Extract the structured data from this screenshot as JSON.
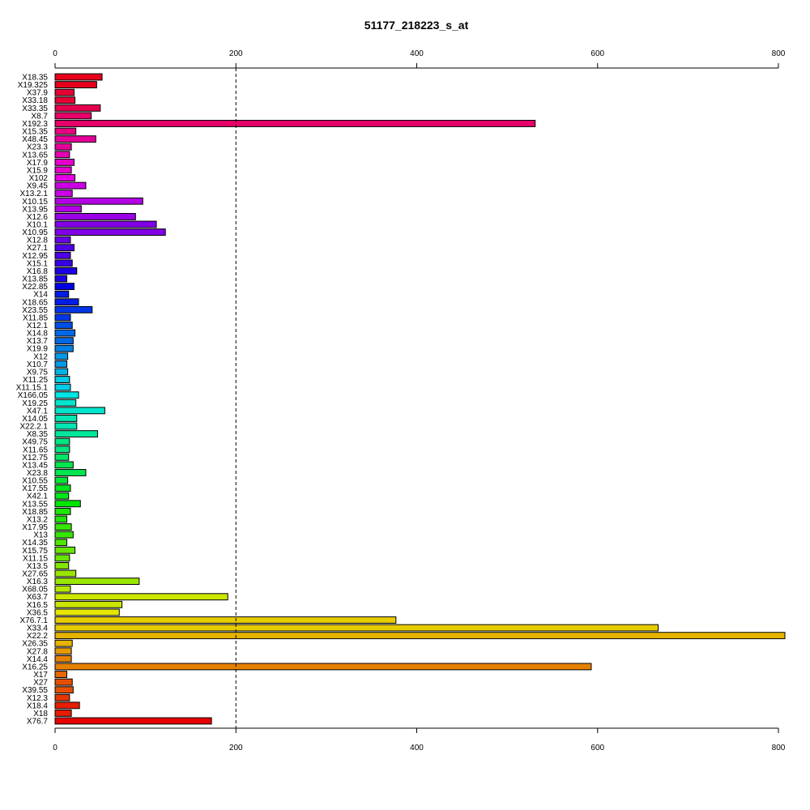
{
  "chart_data": {
    "type": "bar",
    "orientation": "horizontal",
    "title": "51177_218223_s_at",
    "xlabel": "",
    "ylabel": "",
    "xlim": [
      0,
      800
    ],
    "x_ticks": [
      0,
      200,
      400,
      600,
      800
    ],
    "reference_line": 200,
    "axes": "top-and-bottom",
    "grid": false,
    "legend": "none",
    "color_scheme": "rainbow",
    "categories": [
      "X18.35",
      "X19.325",
      "X37.9",
      "X33.18",
      "X33.35",
      "X8.7",
      "X192.3",
      "X15.35",
      "X48.45",
      "X23.3",
      "X13.65",
      "X17.9",
      "X15.9",
      "X102",
      "X9.45",
      "X13.2.1",
      "X10.15",
      "X13.95",
      "X12.6",
      "X10.1",
      "X10.95",
      "X12.8",
      "X27.1",
      "X12.95",
      "X15.1",
      "X16.8",
      "X13.85",
      "X22.85",
      "X14",
      "X18.65",
      "X23.55",
      "X11.85",
      "X12.1",
      "X14.8",
      "X13.7",
      "X19.9",
      "X12",
      "X10.7",
      "X9.75",
      "X11.25",
      "X11.15.1",
      "X166.05",
      "X19.25",
      "X47.1",
      "X14.05",
      "X22.2.1",
      "X8.35",
      "X49.75",
      "X11.65",
      "X12.75",
      "X13.45",
      "X23.8",
      "X10.55",
      "X17.55",
      "X42.1",
      "X13.55",
      "X18.85",
      "X13.2",
      "X17.95",
      "X13",
      "X14.35",
      "X15.75",
      "X11.15",
      "X13.5",
      "X27.65",
      "X16.3",
      "X68.05",
      "X63.7",
      "X16.5",
      "X36.5",
      "X76.7.1",
      "X33.4",
      "X22.2",
      "X26.35",
      "X27.8",
      "X14.4",
      "X16.25",
      "X17",
      "X27",
      "X39.55",
      "X12.3",
      "X18.4",
      "X18",
      "X76.7"
    ],
    "values": [
      52,
      46,
      21,
      22,
      50,
      40,
      531,
      23,
      45,
      18,
      16,
      21,
      18,
      22,
      34,
      19,
      97,
      29,
      89,
      112,
      122,
      17,
      21,
      17,
      19,
      24,
      13,
      21,
      15,
      26,
      41,
      17,
      19,
      22,
      20,
      20,
      14,
      13,
      14,
      16,
      17,
      26,
      23,
      55,
      24,
      24,
      47,
      16,
      16,
      15,
      20,
      34,
      14,
      17,
      15,
      28,
      17,
      13,
      18,
      20,
      13,
      22,
      16,
      15,
      23,
      93,
      17,
      191,
      74,
      71,
      377,
      667,
      808,
      19,
      18,
      18,
      593,
      13,
      19,
      20,
      16,
      27,
      18,
      173
    ],
    "colors": [
      "#E6001D",
      "#E60036",
      "#E6004F",
      "#E60068",
      "#E60081",
      "#E6009A",
      "#E600B3",
      "#E600CC",
      "#E600E6",
      "#CC00E6",
      "#B300E6",
      "#9A00E6",
      "#8100E6",
      "#6800E6",
      "#4F00E6",
      "#3600E6",
      "#1D00E6",
      "#0000E6",
      "#001DE6",
      "#0036E6",
      "#004FE6",
      "#0068E6",
      "#0081E6",
      "#009AE6",
      "#00B3E6",
      "#00CCE6",
      "#00E6E6",
      "#00E6CC",
      "#00E6B3",
      "#00E69A",
      "#00E681",
      "#00E668",
      "#00E64F",
      "#00E636",
      "#00E61D",
      "#00E600",
      "#1DE600",
      "#36E600",
      "#4FE600",
      "#68E600",
      "#81E600",
      "#9AE600",
      "#B3E600",
      "#CCE600",
      "#E6E600",
      "#E6CC00",
      "#E6B300",
      "#E69A00",
      "#E68100",
      "#E66800",
      "#E64F00",
      "#E63600",
      "#E61D00",
      "#E60000"
    ]
  }
}
